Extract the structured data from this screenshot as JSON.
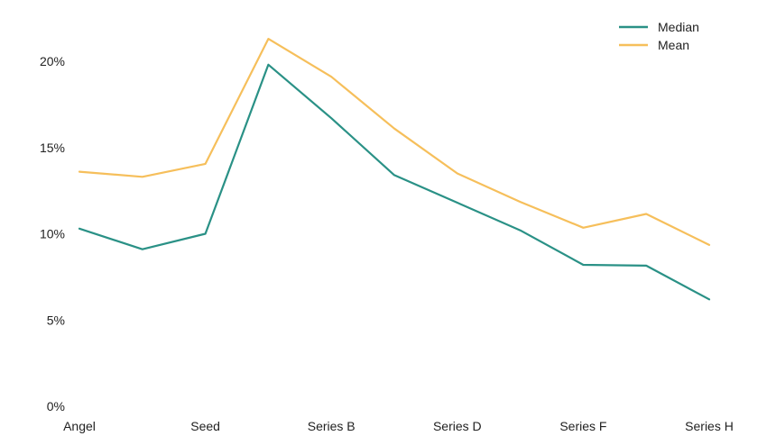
{
  "chart_data": {
    "type": "line",
    "title": "",
    "xlabel": "",
    "ylabel": "",
    "categories": [
      "Angel",
      "",
      "Seed",
      "",
      "Series B",
      "",
      "Series D",
      "",
      "Series F",
      "",
      "Series H"
    ],
    "x_tick_labels": [
      "Angel",
      "Seed",
      "Series B",
      "Series D",
      "Series F",
      "Series H"
    ],
    "y_tick_labels": [
      "0%",
      "5%",
      "10%",
      "15%",
      "20%"
    ],
    "y_ticks": [
      0,
      5,
      10,
      15,
      20
    ],
    "ylim": [
      0,
      22
    ],
    "grid": false,
    "legend_position": "top-right",
    "series": [
      {
        "name": "Median",
        "color": "#2a9186",
        "values": [
          10.3,
          9.1,
          10.0,
          19.8,
          16.7,
          13.4,
          11.8,
          10.2,
          8.2,
          8.15,
          6.2
        ]
      },
      {
        "name": "Mean",
        "color": "#f6bf5b",
        "values": [
          13.6,
          13.3,
          14.05,
          21.3,
          19.1,
          16.1,
          13.5,
          11.85,
          10.35,
          11.15,
          9.35
        ]
      }
    ]
  }
}
